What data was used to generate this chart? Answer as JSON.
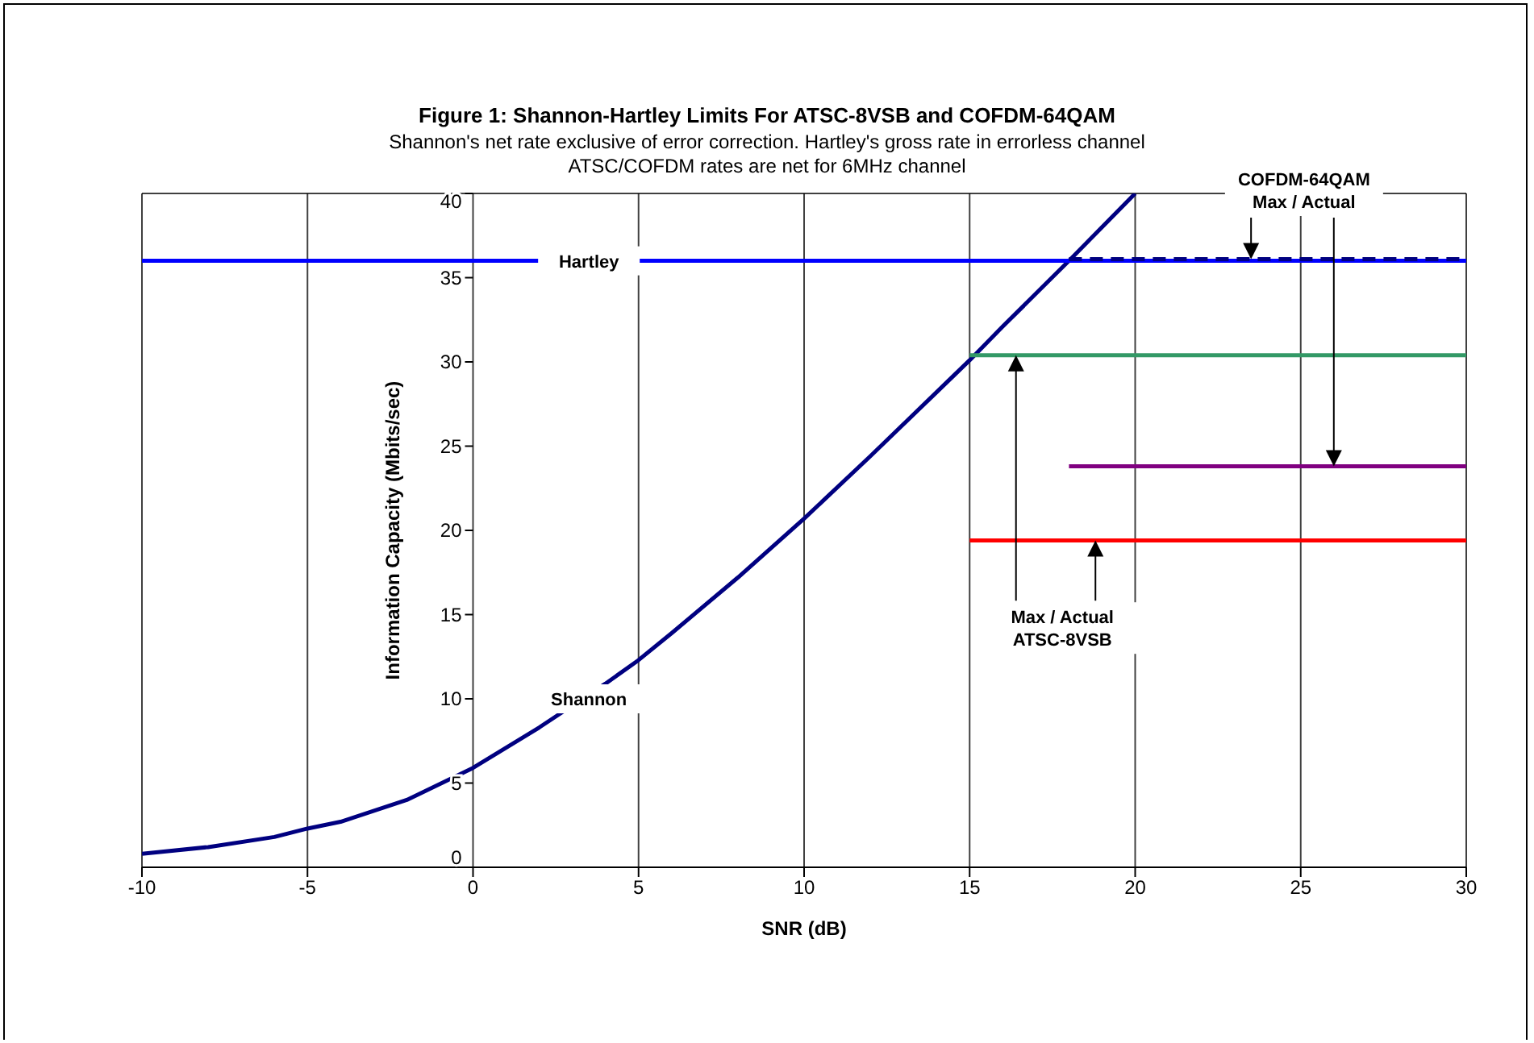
{
  "chart_data": {
    "type": "line",
    "title": "Figure 1: Shannon-Hartley Limits For ATSC-8VSB and COFDM-64QAM",
    "subtitle": "Shannon's net rate exclusive of error correction. Hartley's gross rate in errorless channel\nATSC/COFDM rates are net for 6MHz channel",
    "xlabel": "SNR (dB)",
    "ylabel": "Information Capacity (Mbits/sec)",
    "series": [
      {
        "color": "#000080",
        "x": [
          -10,
          -8,
          -6,
          -5,
          -4,
          -2,
          0,
          2,
          4,
          5,
          6,
          8,
          10,
          12,
          14,
          15,
          16,
          18,
          20
        ],
        "values": [
          0.8,
          1.2,
          1.8,
          2.3,
          2.7,
          4.0,
          5.9,
          8.3,
          10.9,
          12.3,
          13.9,
          17.2,
          20.7,
          24.4,
          28.2,
          30.1,
          32.1,
          36.0,
          40
        ]
      },
      {
        "color": "#0000ff",
        "x": [
          -10,
          30
        ],
        "values": [
          36,
          36
        ]
      },
      {
        "color": "#339966",
        "x": [
          15,
          30
        ],
        "values": [
          30.4,
          30.4
        ]
      },
      {
        "color": "#ff0000",
        "x": [
          15,
          30
        ],
        "values": [
          19.4,
          19.4
        ]
      },
      {
        "color": "#000080",
        "line_style": "dashed",
        "x": [
          18,
          30
        ],
        "values": [
          36.1,
          36.1
        ]
      },
      {
        "color": "#800080",
        "x": [
          18,
          30
        ],
        "values": [
          23.8,
          23.8
        ]
      }
    ],
    "annotations": [
      {
        "text": "Hartley",
        "x": 3.5,
        "y": 36
      },
      {
        "text": "Shannon",
        "x": 3.5,
        "y": 10
      },
      "COFDM-64QAM\nMax / Actual",
      "Max / Actual\nATSC-8VSB"
    ],
    "xlim": [
      -10,
      30
    ],
    "xticks": [
      -10,
      -5,
      0,
      5,
      10,
      15,
      20,
      25,
      30
    ],
    "ylim": [
      0,
      40
    ],
    "yticks": [
      0,
      5,
      10,
      15,
      20,
      25,
      30,
      35,
      40
    ],
    "grid": true,
    "marker": "none",
    "line_style": "solid"
  }
}
